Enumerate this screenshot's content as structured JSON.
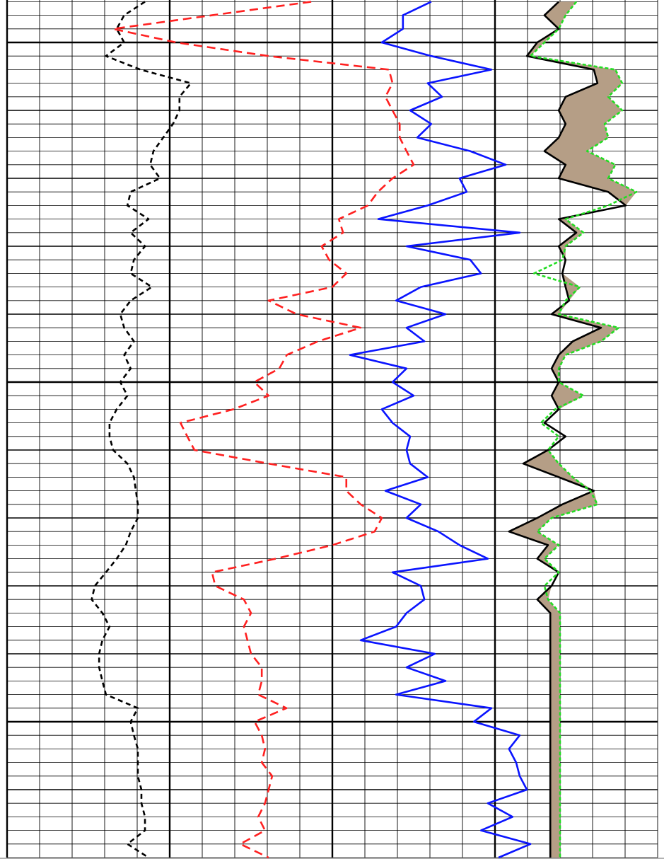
{
  "chart_data": {
    "type": "line",
    "orientation": "depth-down",
    "y": [
      0,
      1,
      2,
      3,
      4,
      5,
      6,
      7,
      8,
      9,
      10,
      11,
      12,
      13,
      14,
      15,
      16,
      17,
      18,
      19,
      20,
      21,
      22,
      23,
      24,
      25,
      26,
      27,
      28,
      29,
      30,
      31,
      32,
      33,
      34,
      35,
      36,
      37,
      38,
      39,
      40,
      41,
      42,
      43,
      44,
      45,
      46,
      47,
      48,
      49,
      50,
      51,
      52,
      53,
      54,
      55,
      56,
      57,
      58,
      59,
      60,
      61,
      62,
      63
    ],
    "ylim": [
      0,
      63
    ],
    "yticks": [
      0,
      1,
      2,
      3,
      4,
      5,
      6,
      7,
      8,
      9,
      10,
      11,
      12,
      13,
      14,
      15,
      16,
      17,
      18,
      19,
      20,
      21,
      22,
      23,
      24,
      25,
      26,
      27,
      28,
      29,
      30,
      31,
      32,
      33,
      34,
      35,
      36,
      37,
      38,
      39,
      40,
      41,
      42,
      43,
      44,
      45,
      46,
      47,
      48,
      49,
      50,
      51,
      52,
      53,
      54,
      55,
      56,
      57,
      58,
      59,
      60,
      61,
      62,
      63
    ],
    "yticks_medium": [
      8,
      13,
      18,
      23,
      33,
      38,
      43,
      48,
      58
    ],
    "yticks_major": [
      3,
      28,
      53
    ],
    "xlim": [
      0,
      20
    ],
    "xticks": [
      0,
      1,
      2,
      3,
      4,
      6,
      7,
      8,
      9,
      11,
      12,
      13,
      14,
      16,
      17,
      18,
      19,
      20
    ],
    "xticks_major": [
      0,
      5,
      10,
      15
    ],
    "grid": true,
    "series": [
      {
        "color": "#000000",
        "dash": "7,5",
        "values": [
          4.24,
          3.6,
          3.37,
          3.6,
          3.04,
          4.1,
          5.65,
          5.3,
          5.3,
          5.1,
          4.8,
          4.5,
          4.4,
          4.7,
          3.8,
          3.7,
          4.35,
          3.8,
          4.24,
          3.9,
          3.8,
          4.45,
          3.8,
          3.48,
          3.6,
          3.9,
          3.6,
          3.8,
          3.48,
          3.7,
          3.37,
          3.15,
          3.15,
          3.26,
          3.7,
          3.9,
          3.96,
          4.02,
          4.02,
          3.8,
          3.65,
          3.37,
          3.04,
          2.7,
          2.6,
          2.93,
          3.15,
          2.93,
          2.83,
          2.83,
          2.93,
          3.04,
          4.02,
          3.8,
          3.9,
          4.02,
          4.02,
          4.02,
          4.13,
          4.13,
          4.24,
          4.24,
          3.7,
          4.35
        ]
      },
      {
        "color": "#ff2020",
        "dash": "12,7",
        "values": [
          9.35,
          6.3,
          3.26,
          5.2,
          8.04,
          11.74,
          11.85,
          11.63,
          11.85,
          12.07,
          12.07,
          12.28,
          12.5,
          11.85,
          11.4,
          11.09,
          10.2,
          10.33,
          9.67,
          9.9,
          10.43,
          10,
          8.04,
          8.9,
          10.87,
          9.56,
          8.6,
          8.37,
          7.6,
          8.04,
          6.96,
          5.33,
          5.54,
          5.76,
          8.04,
          10.43,
          10.43,
          10.87,
          11.52,
          11.3,
          10,
          8.26,
          6.3,
          6.4,
          7.28,
          7.5,
          7.28,
          7.39,
          7.5,
          7.83,
          7.83,
          7.72,
          8.59,
          7.61,
          7.83,
          7.93,
          7.83,
          8.15,
          8.04,
          7.93,
          7.72,
          7.93,
          7.17,
          8.04
        ]
      },
      {
        "color": "#0a14ff",
        "dash": "none",
        "values": [
          13.04,
          12.17,
          12.17,
          11.52,
          13.04,
          14.89,
          12.93,
          13.37,
          12.39,
          13.04,
          12.61,
          14.24,
          15.33,
          13.91,
          14.13,
          12.93,
          11.41,
          15.76,
          12.28,
          14.24,
          14.57,
          12.72,
          11.96,
          13.48,
          12.28,
          12.83,
          10.54,
          12.28,
          11.85,
          12.5,
          11.52,
          11.85,
          12.39,
          12.28,
          12.39,
          12.93,
          11.63,
          12.72,
          12.28,
          13.26,
          13.91,
          14.78,
          11.85,
          12.72,
          12.83,
          12.28,
          11.96,
          10.87,
          13.15,
          12.28,
          13.48,
          11.96,
          14.89,
          14.35,
          15.76,
          15.43,
          15.65,
          15.76,
          15.98,
          14.78,
          15.54,
          14.57,
          16.09,
          15.11
        ]
      },
      {
        "color": "#000000",
        "dash": "none",
        "values": [
          16.96,
          16.52,
          16.96,
          16.3,
          15.98,
          18.04,
          18.15,
          17.17,
          16.96,
          17.17,
          16.96,
          16.52,
          17.17,
          16.96,
          18.48,
          19.02,
          16.96,
          17.5,
          16.96,
          17.17,
          17.07,
          17.17,
          17.28,
          16.74,
          18.26,
          17.39,
          16.96,
          16.74,
          16.96,
          16.74,
          16.96,
          16.52,
          17.17,
          16.63,
          15.87,
          16.96,
          18.04,
          17.07,
          16.3,
          15.43,
          16.63,
          16.3,
          16.96,
          16.74,
          16.3,
          16.7,
          16.7,
          16.7,
          16.7,
          16.7,
          16.7,
          16.7,
          16.7,
          16.7,
          16.7,
          16.7,
          16.7,
          16.7,
          16.7,
          16.7,
          16.7,
          16.7,
          16.7,
          16.7
        ]
      },
      {
        "color": "#22dd22",
        "dash": "5,3",
        "values": [
          17.5,
          17.17,
          16.96,
          16.52,
          16.09,
          18.7,
          18.91,
          18.48,
          18.91,
          18.37,
          18.48,
          17.83,
          18.7,
          18.48,
          19.35,
          18.48,
          17.17,
          17.72,
          17.17,
          17.07,
          16.2,
          17.61,
          17.17,
          16.96,
          18.8,
          18.26,
          17.17,
          16.96,
          16.96,
          17.72,
          16.85,
          16.41,
          16.96,
          16.63,
          16.96,
          17.39,
          17.93,
          18.15,
          16.74,
          16.3,
          16.96,
          16.52,
          16.96,
          16.52,
          16.63,
          17,
          17,
          17,
          17,
          17,
          17,
          17,
          17,
          17,
          17,
          17,
          17,
          17,
          17,
          17,
          17,
          17,
          17,
          17
        ]
      }
    ],
    "fill_between": {
      "series": [
        3,
        4
      ],
      "color": "#b59e86"
    }
  }
}
